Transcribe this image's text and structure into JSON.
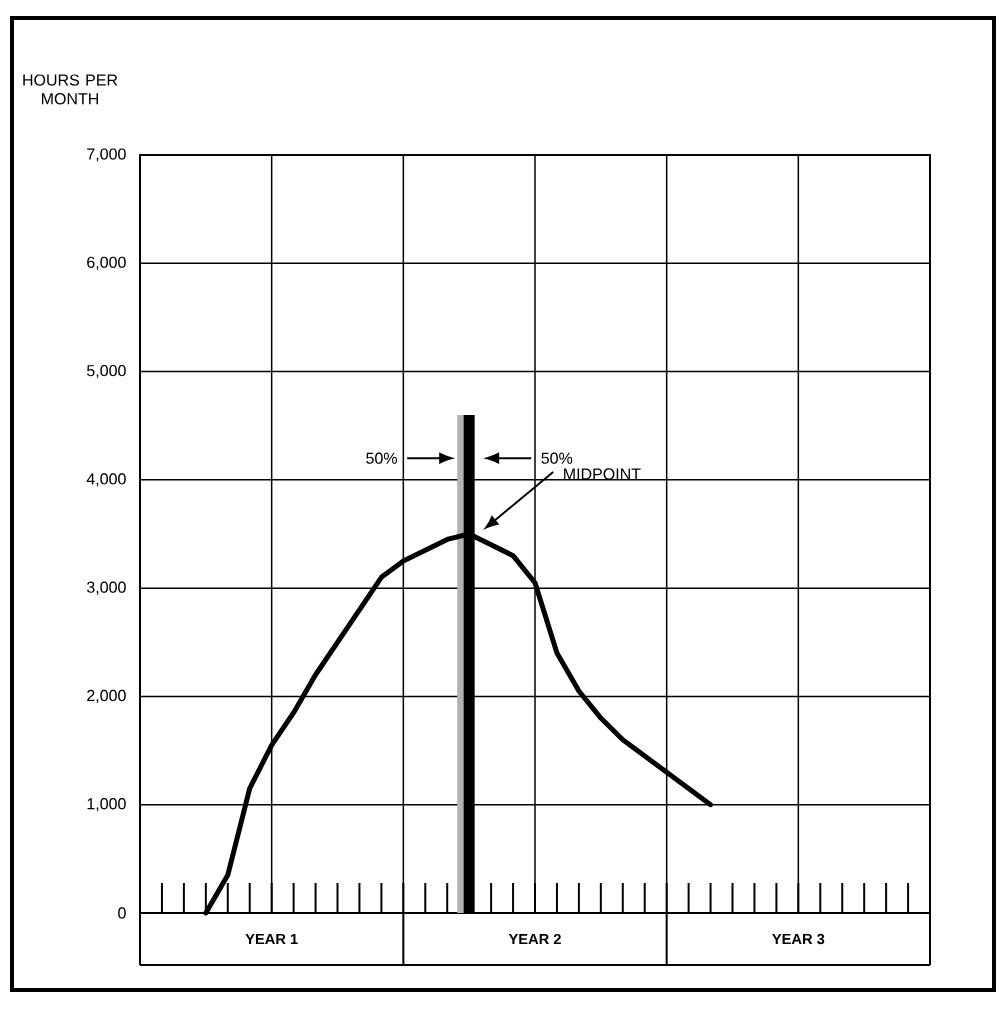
{
  "chart_data": {
    "type": "line",
    "ylabel": "HOURS PER MONTH",
    "categories": [
      null,
      null,
      null,
      null,
      null,
      null,
      null,
      null,
      null,
      null,
      null,
      null,
      null,
      null,
      null,
      null,
      null,
      null,
      null,
      null,
      null,
      null,
      null,
      null,
      null,
      null,
      null,
      null,
      null,
      null,
      null,
      null,
      null,
      null,
      null,
      null,
      null
    ],
    "values": [
      null,
      null,
      null,
      0,
      350,
      1150,
      1550,
      1850,
      2200,
      2500,
      2800,
      3100,
      3250,
      3350,
      3450,
      3500,
      3400,
      3300,
      3050,
      2400,
      2050,
      1800,
      1600,
      1450,
      1300,
      1150,
      1000,
      null,
      null,
      null,
      null,
      null,
      null,
      null,
      null,
      null,
      null
    ],
    "color": "#000000",
    "ylim": [
      0,
      7000
    ],
    "yticks": [
      {
        "value": 0,
        "label": "0"
      },
      {
        "value": 1000,
        "label": "1,000"
      },
      {
        "value": 2000,
        "label": "2,000"
      },
      {
        "value": 3000,
        "label": "3,000"
      },
      {
        "value": 4000,
        "label": "4,000"
      },
      {
        "value": 5000,
        "label": "5,000"
      },
      {
        "value": 6000,
        "label": "6,000"
      },
      {
        "value": 7000,
        "label": "7,000"
      }
    ],
    "grid": true,
    "annotations": [
      "50%",
      "50%",
      "MIDPOINT",
      "YEAR 1",
      "YEAR 2",
      "YEAR 3"
    ]
  }
}
